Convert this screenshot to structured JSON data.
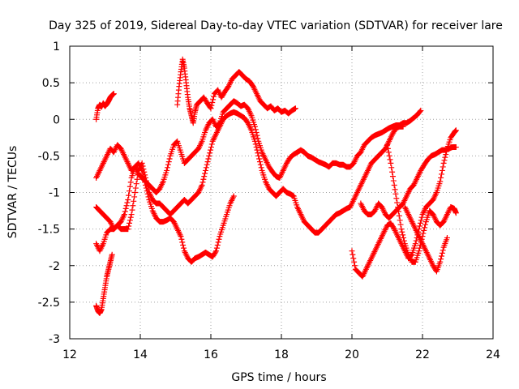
{
  "chart_data": {
    "type": "scatter",
    "title": "Day 325 of 2019, Sidereal Day-to-day VTEC variation (SDTVAR) for receiver lare",
    "xlabel": "GPS time / hours",
    "ylabel": "SDTVAR / TECUs",
    "xlim": [
      12,
      24
    ],
    "ylim": [
      -3,
      1
    ],
    "xticks": [
      12,
      14,
      16,
      18,
      20,
      22,
      24
    ],
    "yticks": [
      -3,
      -2.5,
      -2,
      -1.5,
      -1,
      -0.5,
      0,
      0.5,
      1
    ],
    "xtick_labels": [
      "12",
      "14",
      "16",
      "18",
      "20",
      "22",
      "24"
    ],
    "ytick_labels": [
      "-3",
      "-2.5",
      "-2",
      "-1.5",
      "-1",
      "-0.5",
      "0",
      "0.5",
      "1"
    ],
    "grid": true,
    "marker": "+",
    "color": "#ff0000",
    "series": [
      {
        "x": [
          12.75,
          12.8,
          12.85,
          12.9,
          12.95,
          13.0,
          13.05,
          13.1,
          13.15,
          13.2,
          13.25
        ],
        "y": [
          0.0,
          0.15,
          0.2,
          0.17,
          0.22,
          0.18,
          0.21,
          0.25,
          0.3,
          0.33,
          0.35
        ]
      },
      {
        "x": [
          15.05,
          15.1,
          15.15,
          15.2,
          15.25,
          15.3,
          15.35,
          15.4,
          15.45,
          15.5,
          15.55,
          15.6,
          15.7,
          15.8,
          15.9,
          16.0,
          16.1,
          16.2,
          16.3,
          16.4,
          16.5,
          16.6,
          16.7,
          16.8,
          16.9,
          17.0,
          17.1,
          17.2,
          17.3,
          17.4,
          17.5,
          17.6,
          17.7,
          17.8,
          17.9,
          18.0,
          18.1,
          18.2,
          18.3,
          18.4
        ],
        "y": [
          0.2,
          0.45,
          0.65,
          0.82,
          0.7,
          0.5,
          0.3,
          0.15,
          0.05,
          -0.05,
          0.1,
          0.2,
          0.25,
          0.3,
          0.22,
          0.15,
          0.35,
          0.4,
          0.3,
          0.38,
          0.45,
          0.55,
          0.6,
          0.65,
          0.6,
          0.55,
          0.52,
          0.45,
          0.35,
          0.25,
          0.2,
          0.15,
          0.18,
          0.12,
          0.15,
          0.1,
          0.12,
          0.08,
          0.12,
          0.15
        ]
      },
      {
        "x": [
          12.75,
          12.85,
          12.95,
          13.05,
          13.15,
          13.25,
          13.35,
          13.45,
          13.55,
          13.65,
          13.75,
          13.85,
          13.95,
          14.05,
          14.15,
          14.25,
          14.35,
          14.45,
          14.55,
          14.65,
          14.75,
          14.85,
          14.95,
          15.05,
          15.15,
          15.25,
          15.35,
          15.45,
          15.55,
          15.65,
          15.75,
          15.85,
          15.95,
          16.05,
          16.15,
          16.25,
          16.35,
          16.45,
          16.55,
          16.65,
          16.75,
          16.85,
          16.95,
          17.05,
          17.15,
          17.25,
          17.35,
          17.45,
          17.55,
          17.65,
          17.75,
          17.85,
          17.95,
          18.05,
          18.15,
          18.25,
          18.35,
          18.45,
          18.55,
          18.65,
          18.75,
          18.85,
          18.95,
          19.05,
          19.15,
          19.25,
          19.35,
          19.45,
          19.55,
          19.65,
          19.75,
          19.85,
          19.95,
          20.05,
          20.15,
          20.25,
          20.35,
          20.45,
          20.55,
          20.65,
          20.75,
          20.85,
          20.95,
          21.05,
          21.15,
          21.25,
          21.35,
          21.45,
          21.55,
          21.65,
          21.75,
          21.85,
          21.95
        ],
        "y": [
          -0.8,
          -0.7,
          -0.6,
          -0.5,
          -0.4,
          -0.45,
          -0.35,
          -0.4,
          -0.5,
          -0.6,
          -0.7,
          -0.65,
          -0.75,
          -0.8,
          -0.85,
          -0.9,
          -0.95,
          -1.0,
          -0.95,
          -0.85,
          -0.7,
          -0.5,
          -0.35,
          -0.3,
          -0.45,
          -0.6,
          -0.55,
          -0.5,
          -0.45,
          -0.4,
          -0.3,
          -0.15,
          -0.05,
          0.0,
          -0.1,
          -0.05,
          0.1,
          0.15,
          0.2,
          0.25,
          0.22,
          0.18,
          0.2,
          0.15,
          0.05,
          -0.1,
          -0.3,
          -0.45,
          -0.55,
          -0.65,
          -0.72,
          -0.78,
          -0.8,
          -0.7,
          -0.6,
          -0.52,
          -0.48,
          -0.45,
          -0.42,
          -0.45,
          -0.5,
          -0.52,
          -0.55,
          -0.58,
          -0.6,
          -0.62,
          -0.65,
          -0.6,
          -0.6,
          -0.62,
          -0.62,
          -0.65,
          -0.65,
          -0.6,
          -0.5,
          -0.45,
          -0.35,
          -0.3,
          -0.25,
          -0.22,
          -0.2,
          -0.18,
          -0.15,
          -0.12,
          -0.1,
          -0.08,
          -0.08,
          -0.05,
          -0.05,
          -0.02,
          0.02,
          0.06,
          0.12
        ]
      },
      {
        "x": [
          12.75,
          12.85,
          12.95,
          13.05,
          13.15,
          13.25,
          13.35,
          13.45,
          13.55,
          13.65,
          13.75,
          13.85,
          13.95,
          14.05,
          14.15,
          14.25,
          14.35,
          14.45,
          14.55,
          14.65,
          14.75,
          14.85,
          14.95,
          15.05,
          15.15,
          15.25,
          15.35,
          15.45,
          15.55,
          15.65,
          15.75,
          15.85,
          15.95,
          16.05,
          16.15,
          16.25,
          16.35,
          16.45,
          16.55,
          16.65,
          16.75,
          16.85,
          16.95,
          17.05,
          17.15,
          17.25,
          17.35,
          17.45,
          17.55,
          17.65,
          17.75,
          17.85,
          17.95,
          18.05,
          18.15,
          18.25,
          18.35,
          18.45,
          18.55,
          18.65,
          18.75,
          18.85,
          18.95,
          19.05,
          19.15,
          19.25,
          19.35,
          19.45,
          19.55,
          19.65,
          19.75,
          19.85,
          19.95,
          20.05,
          20.15,
          20.25,
          20.35,
          20.45,
          20.55,
          20.65,
          20.75,
          20.85,
          20.95,
          21.05,
          21.15,
          21.25,
          21.35,
          21.45
        ],
        "y": [
          -1.2,
          -1.25,
          -1.3,
          -1.35,
          -1.4,
          -1.5,
          -1.45,
          -1.5,
          -1.5,
          -1.5,
          -1.3,
          -1.0,
          -0.7,
          -0.6,
          -0.8,
          -1.0,
          -1.1,
          -1.15,
          -1.15,
          -1.2,
          -1.25,
          -1.3,
          -1.25,
          -1.2,
          -1.15,
          -1.1,
          -1.15,
          -1.1,
          -1.05,
          -1.0,
          -0.9,
          -0.7,
          -0.5,
          -0.3,
          -0.2,
          -0.1,
          0.0,
          0.05,
          0.08,
          0.1,
          0.08,
          0.05,
          0.02,
          -0.05,
          -0.15,
          -0.3,
          -0.5,
          -0.7,
          -0.85,
          -0.95,
          -1.0,
          -1.05,
          -1.0,
          -0.95,
          -1.0,
          -1.02,
          -1.05,
          -1.2,
          -1.3,
          -1.4,
          -1.45,
          -1.5,
          -1.55,
          -1.55,
          -1.5,
          -1.45,
          -1.4,
          -1.35,
          -1.3,
          -1.28,
          -1.25,
          -1.22,
          -1.2,
          -1.1,
          -1.0,
          -0.9,
          -0.8,
          -0.7,
          -0.6,
          -0.55,
          -0.5,
          -0.45,
          -0.4,
          -0.3,
          -0.2,
          -0.12,
          -0.1,
          -0.1
        ]
      },
      {
        "x": [
          12.75,
          12.85,
          12.95,
          13.05,
          13.15,
          13.25,
          13.35,
          13.45,
          13.55,
          13.65,
          13.75,
          13.85,
          13.95,
          14.05,
          14.15,
          14.25,
          14.35,
          14.45,
          14.55,
          14.65,
          14.75,
          14.85,
          14.95,
          15.05,
          15.15,
          15.25,
          15.35,
          15.45,
          15.55,
          15.65,
          15.75,
          15.85,
          15.95,
          16.05,
          16.15,
          16.25,
          16.35,
          16.45,
          16.55,
          16.65
        ],
        "y": [
          -1.7,
          -1.8,
          -1.7,
          -1.55,
          -1.5,
          -1.5,
          -1.45,
          -1.4,
          -1.3,
          -1.1,
          -0.8,
          -0.65,
          -0.6,
          -0.7,
          -0.9,
          -1.1,
          -1.25,
          -1.35,
          -1.4,
          -1.4,
          -1.38,
          -1.35,
          -1.4,
          -1.5,
          -1.6,
          -1.8,
          -1.9,
          -1.95,
          -1.9,
          -1.88,
          -1.85,
          -1.82,
          -1.85,
          -1.88,
          -1.8,
          -1.6,
          -1.45,
          -1.3,
          -1.15,
          -1.05
        ]
      },
      {
        "x": [
          12.75,
          12.8,
          12.85,
          12.9,
          12.95,
          13.0,
          13.05,
          13.1,
          13.15,
          13.2
        ],
        "y": [
          -2.55,
          -2.62,
          -2.65,
          -2.6,
          -2.45,
          -2.3,
          -2.15,
          -2.05,
          -1.95,
          -1.85
        ]
      },
      {
        "x": [
          20.25,
          20.35,
          20.45,
          20.55,
          20.65,
          20.75,
          20.85,
          20.95,
          21.05,
          21.15,
          21.25,
          21.35,
          21.45,
          21.55,
          21.65,
          21.75,
          21.85,
          21.95,
          22.05,
          22.15,
          22.25,
          22.35,
          22.45,
          22.55,
          22.65,
          22.75,
          22.85,
          22.95
        ],
        "y": [
          -1.15,
          -1.25,
          -1.3,
          -1.3,
          -1.25,
          -1.15,
          -1.2,
          -1.3,
          -1.35,
          -1.3,
          -1.25,
          -1.2,
          -1.15,
          -1.05,
          -0.95,
          -0.9,
          -0.8,
          -0.7,
          -0.62,
          -0.55,
          -0.5,
          -0.48,
          -0.45,
          -0.42,
          -0.42,
          -0.4,
          -0.38,
          -0.38
        ]
      },
      {
        "x": [
          20.0,
          20.1,
          20.2,
          20.3,
          20.4,
          20.5,
          20.6,
          20.7,
          20.8,
          20.9,
          21.0,
          21.1,
          21.2,
          21.3,
          21.4,
          21.5,
          21.6,
          21.7,
          21.8,
          21.9,
          22.0,
          22.1,
          22.2,
          22.3,
          22.4,
          22.5,
          22.6,
          22.7,
          22.8,
          22.9,
          22.95
        ],
        "y": [
          -1.8,
          -2.05,
          -2.1,
          -2.15,
          -2.05,
          -1.95,
          -1.85,
          -1.75,
          -1.65,
          -1.55,
          -1.45,
          -1.42,
          -1.5,
          -1.6,
          -1.7,
          -1.8,
          -1.9,
          -1.85,
          -1.7,
          -1.5,
          -1.3,
          -1.2,
          -1.15,
          -1.1,
          -1.0,
          -0.85,
          -0.6,
          -0.4,
          -0.25,
          -0.18,
          -0.15
        ]
      },
      {
        "x": [
          21.0,
          21.1,
          21.2,
          21.3,
          21.4,
          21.5,
          21.6,
          21.7,
          21.8,
          21.9,
          22.0,
          22.1,
          22.2,
          22.3,
          22.4,
          22.5,
          22.6,
          22.7,
          22.8,
          22.9,
          22.95
        ],
        "y": [
          -0.35,
          -0.6,
          -0.9,
          -1.2,
          -1.5,
          -1.7,
          -1.85,
          -1.95,
          -1.95,
          -1.8,
          -1.6,
          -1.4,
          -1.25,
          -1.3,
          -1.4,
          -1.45,
          -1.4,
          -1.3,
          -1.2,
          -1.22,
          -1.28
        ]
      },
      {
        "x": [
          21.5,
          21.6,
          21.7,
          21.8,
          21.9,
          22.0,
          22.1,
          22.2,
          22.3,
          22.4,
          22.5,
          22.6,
          22.7
        ],
        "y": [
          -1.2,
          -1.3,
          -1.4,
          -1.5,
          -1.6,
          -1.7,
          -1.8,
          -1.9,
          -2.0,
          -2.08,
          -1.95,
          -1.75,
          -1.62
        ]
      }
    ]
  }
}
